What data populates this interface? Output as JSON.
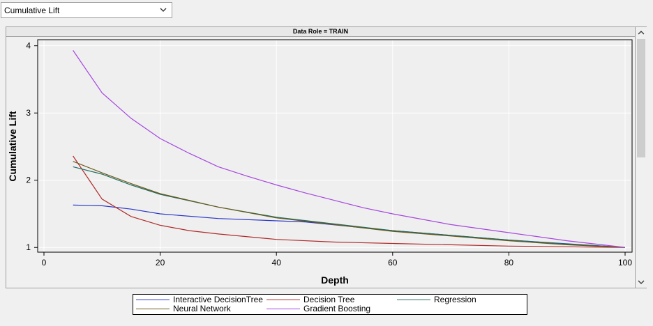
{
  "selector": {
    "value": "Cumulative Lift"
  },
  "panel": {
    "header": "Data Role = TRAIN"
  },
  "chart_data": {
    "type": "line",
    "title": "",
    "xlabel": "Depth",
    "ylabel": "Cumulative Lift",
    "xlim": [
      0,
      100
    ],
    "ylim": [
      0.93,
      4.09
    ],
    "xticks": [
      0,
      20,
      40,
      60,
      80,
      100
    ],
    "yticks": [
      1,
      2,
      3,
      4
    ],
    "grid": true,
    "legend_position": "bottom",
    "series": [
      {
        "name": "Interactive DecisionTree",
        "color": "#2a36c8",
        "x": [
          5,
          10,
          15,
          20,
          30,
          45,
          60,
          80,
          100
        ],
        "y": [
          1.63,
          1.62,
          1.57,
          1.5,
          1.43,
          1.38,
          1.25,
          1.11,
          1.0
        ]
      },
      {
        "name": "Decision Tree",
        "color": "#b02a2a",
        "x": [
          5,
          10,
          15,
          20,
          25,
          30,
          40,
          50,
          60,
          70,
          80,
          90,
          100
        ],
        "y": [
          2.36,
          1.72,
          1.46,
          1.33,
          1.25,
          1.2,
          1.12,
          1.08,
          1.06,
          1.04,
          1.02,
          1.01,
          1.0
        ]
      },
      {
        "name": "Regression",
        "color": "#1f6e62",
        "x": [
          5,
          10,
          15,
          20,
          30,
          40,
          50,
          60,
          70,
          80,
          90,
          100
        ],
        "y": [
          2.2,
          2.09,
          1.93,
          1.79,
          1.6,
          1.45,
          1.35,
          1.25,
          1.18,
          1.11,
          1.05,
          1.0
        ]
      },
      {
        "name": "Neural Network",
        "color": "#6e5a1a",
        "x": [
          5,
          10,
          15,
          20,
          30,
          40,
          50,
          60,
          70,
          80,
          90,
          100
        ],
        "y": [
          2.28,
          2.11,
          1.95,
          1.8,
          1.6,
          1.44,
          1.34,
          1.24,
          1.17,
          1.1,
          1.04,
          1.0
        ]
      },
      {
        "name": "Gradient Boosting",
        "color": "#a646e0",
        "x": [
          5,
          10,
          15,
          20,
          25,
          30,
          35,
          40,
          45,
          50,
          55,
          60,
          70,
          80,
          90,
          100
        ],
        "y": [
          3.93,
          3.3,
          2.92,
          2.62,
          2.4,
          2.2,
          2.06,
          1.93,
          1.81,
          1.7,
          1.59,
          1.5,
          1.34,
          1.22,
          1.1,
          1.0
        ]
      }
    ]
  }
}
